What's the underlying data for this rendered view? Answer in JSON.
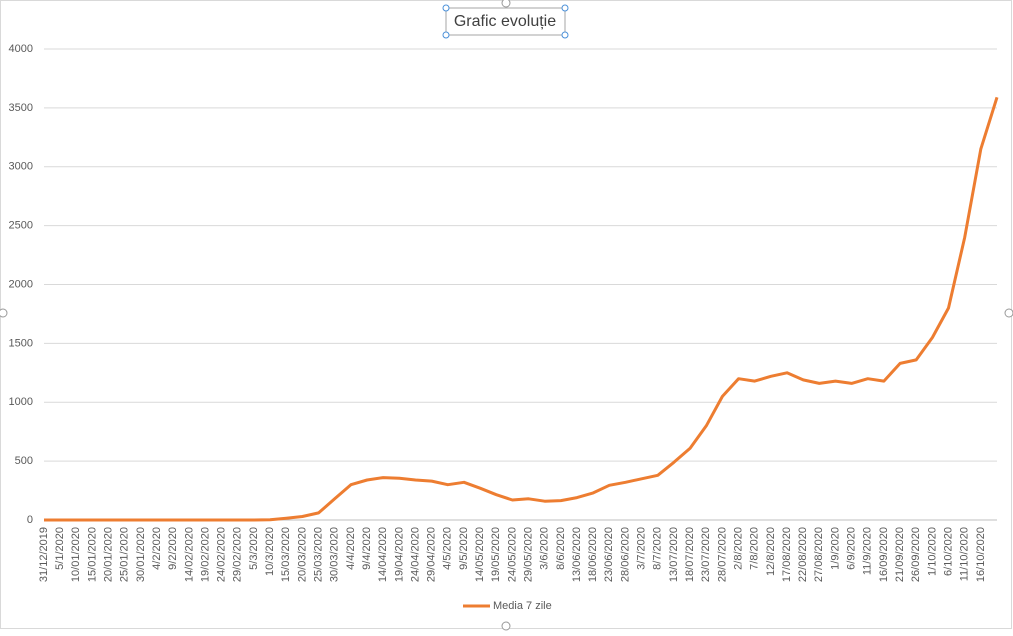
{
  "chart_data": {
    "type": "line",
    "title": "Grafic evoluție",
    "categories": [
      "31/12/2019",
      "5/1/2020",
      "10/01/2020",
      "15/01/2020",
      "20/01/2020",
      "25/01/2020",
      "30/01/2020",
      "4/2/2020",
      "9/2/2020",
      "14/02/2020",
      "19/02/2020",
      "24/02/2020",
      "29/02/2020",
      "5/3/2020",
      "10/3/2020",
      "15/03/2020",
      "20/03/2020",
      "25/03/2020",
      "30/03/2020",
      "4/4/2020",
      "9/4/2020",
      "14/04/2020",
      "19/04/2020",
      "24/04/2020",
      "29/04/2020",
      "4/5/2020",
      "9/5/2020",
      "14/05/2020",
      "19/05/2020",
      "24/05/2020",
      "29/05/2020",
      "3/6/2020",
      "8/6/2020",
      "13/06/2020",
      "18/06/2020",
      "23/06/2020",
      "28/06/2020",
      "3/7/2020",
      "8/7/2020",
      "13/07/2020",
      "18/07/2020",
      "23/07/2020",
      "28/07/2020",
      "2/8/2020",
      "7/8/2020",
      "12/8/2020",
      "17/08/2020",
      "22/08/2020",
      "27/08/2020",
      "1/9/2020",
      "6/9/2020",
      "11/9/2020",
      "16/09/2020",
      "21/09/2020",
      "26/09/2020",
      "1/10/2020",
      "6/10/2020",
      "11/10/2020",
      "16/10/2020",
      null
    ],
    "series": [
      {
        "name": "Media 7 zile",
        "color": "#ed7d31",
        "values": [
          0,
          0,
          0,
          0,
          0,
          0,
          0,
          0,
          0,
          0,
          0,
          0,
          0,
          0,
          2,
          15,
          30,
          60,
          180,
          300,
          340,
          360,
          355,
          340,
          330,
          300,
          320,
          270,
          215,
          170,
          180,
          160,
          165,
          190,
          230,
          295,
          320,
          350,
          380,
          490,
          610,
          800,
          1050,
          1200,
          1180,
          1220,
          1250,
          1190,
          1160,
          1180,
          1160,
          1200,
          1180,
          1330,
          1360,
          1550,
          1800,
          2400,
          3150,
          3590
        ]
      }
    ],
    "ylim": [
      0,
      4000
    ],
    "yticks": [
      0,
      500,
      1000,
      1500,
      2000,
      2500,
      3000,
      3500,
      4000
    ],
    "grid": true,
    "legend": "bottom"
  }
}
